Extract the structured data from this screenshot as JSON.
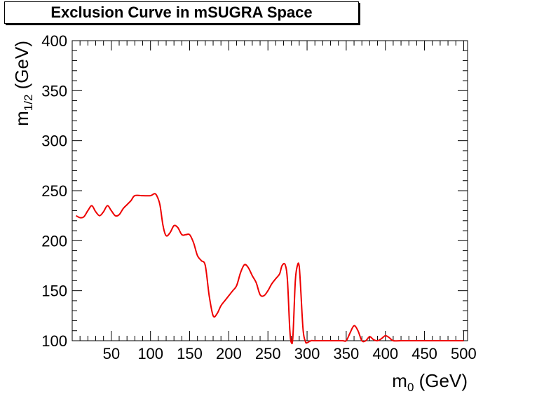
{
  "chart_data": {
    "type": "line",
    "title": "Exclusion Curve in mSUGRA Space",
    "xlabel": {
      "base": "m",
      "sub": "0",
      "unit": " (GeV)"
    },
    "ylabel": {
      "base": "m",
      "sub": "1/2",
      "unit": " (GeV)"
    },
    "xlim": [
      0,
      505
    ],
    "ylim": [
      100,
      400
    ],
    "xticks": [
      50,
      100,
      150,
      200,
      250,
      300,
      350,
      400,
      450,
      500
    ],
    "yticks": [
      100,
      150,
      200,
      250,
      300,
      350,
      400
    ],
    "grid": false,
    "series": [
      {
        "color": "#ee0000",
        "x": [
          5,
          10,
          15,
          20,
          25,
          30,
          35,
          40,
          45,
          50,
          55,
          60,
          65,
          70,
          75,
          80,
          90,
          100,
          105,
          108,
          112,
          116,
          120,
          125,
          130,
          135,
          140,
          145,
          150,
          155,
          160,
          165,
          170,
          175,
          180,
          185,
          190,
          195,
          200,
          205,
          210,
          215,
          220,
          225,
          230,
          235,
          240,
          245,
          250,
          255,
          260,
          265,
          268,
          272,
          275,
          278,
          280,
          282,
          285,
          288,
          290,
          292,
          295,
          298,
          300,
          305,
          310,
          330,
          345,
          350,
          355,
          360,
          365,
          370,
          375,
          380,
          385,
          390,
          395,
          400,
          405,
          410,
          420,
          450,
          500
        ],
        "y": [
          225,
          223,
          224,
          230,
          235,
          229,
          225,
          229,
          235,
          230,
          225,
          226,
          232,
          236,
          240,
          245,
          245,
          245,
          247,
          245,
          236,
          215,
          205,
          208,
          215,
          213,
          206,
          206,
          206,
          198,
          185,
          180,
          175,
          145,
          125,
          127,
          135,
          140,
          145,
          150,
          155,
          168,
          176,
          173,
          165,
          158,
          146,
          145,
          150,
          157,
          162,
          167,
          175,
          176,
          160,
          110,
          98,
          105,
          160,
          176,
          174,
          150,
          110,
          99,
          98,
          100,
          100,
          100,
          100,
          100,
          108,
          115,
          110,
          100,
          100,
          104,
          101,
          100,
          102,
          105,
          103,
          100,
          100,
          100,
          100
        ]
      }
    ]
  }
}
